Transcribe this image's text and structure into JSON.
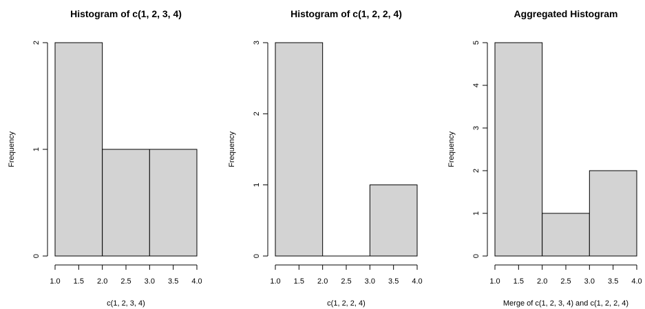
{
  "chart_data": [
    {
      "type": "bar",
      "title": "Histogram of c(1, 2, 3, 4)",
      "xlabel": "c(1, 2, 3, 4)",
      "ylabel": "Frequency",
      "bins": [
        [
          1.0,
          2.0
        ],
        [
          2.0,
          3.0
        ],
        [
          3.0,
          4.0
        ]
      ],
      "values": [
        2,
        1,
        1
      ],
      "xlim": [
        1.0,
        4.0
      ],
      "ylim": [
        0,
        2
      ],
      "x_ticks": [
        "1.0",
        "1.5",
        "2.0",
        "2.5",
        "3.0",
        "3.5",
        "4.0"
      ],
      "y_ticks": [
        "0",
        "1",
        "2"
      ],
      "bar_color": "#d3d3d3",
      "grid": false
    },
    {
      "type": "bar",
      "title": "Histogram of c(1, 2, 2, 4)",
      "xlabel": "c(1, 2, 2, 4)",
      "ylabel": "Frequency",
      "bins": [
        [
          1.0,
          2.0
        ],
        [
          2.0,
          3.0
        ],
        [
          3.0,
          4.0
        ]
      ],
      "values": [
        3,
        0,
        1
      ],
      "xlim": [
        1.0,
        4.0
      ],
      "ylim": [
        0,
        3
      ],
      "x_ticks": [
        "1.0",
        "1.5",
        "2.0",
        "2.5",
        "3.0",
        "3.5",
        "4.0"
      ],
      "y_ticks": [
        "0",
        "1",
        "2",
        "3"
      ],
      "bar_color": "#d3d3d3",
      "grid": false
    },
    {
      "type": "bar",
      "title": "Aggregated Histogram",
      "xlabel": "Merge of c(1, 2, 3, 4) and c(1, 2, 2, 4)",
      "ylabel": "Frequency",
      "bins": [
        [
          1.0,
          2.0
        ],
        [
          2.0,
          3.0
        ],
        [
          3.0,
          4.0
        ]
      ],
      "values": [
        5,
        1,
        2
      ],
      "xlim": [
        1.0,
        4.0
      ],
      "ylim": [
        0,
        5
      ],
      "x_ticks": [
        "1.0",
        "1.5",
        "2.0",
        "2.5",
        "3.0",
        "3.5",
        "4.0"
      ],
      "y_ticks": [
        "0",
        "1",
        "2",
        "3",
        "4",
        "5"
      ],
      "bar_color": "#d3d3d3",
      "grid": false
    }
  ]
}
